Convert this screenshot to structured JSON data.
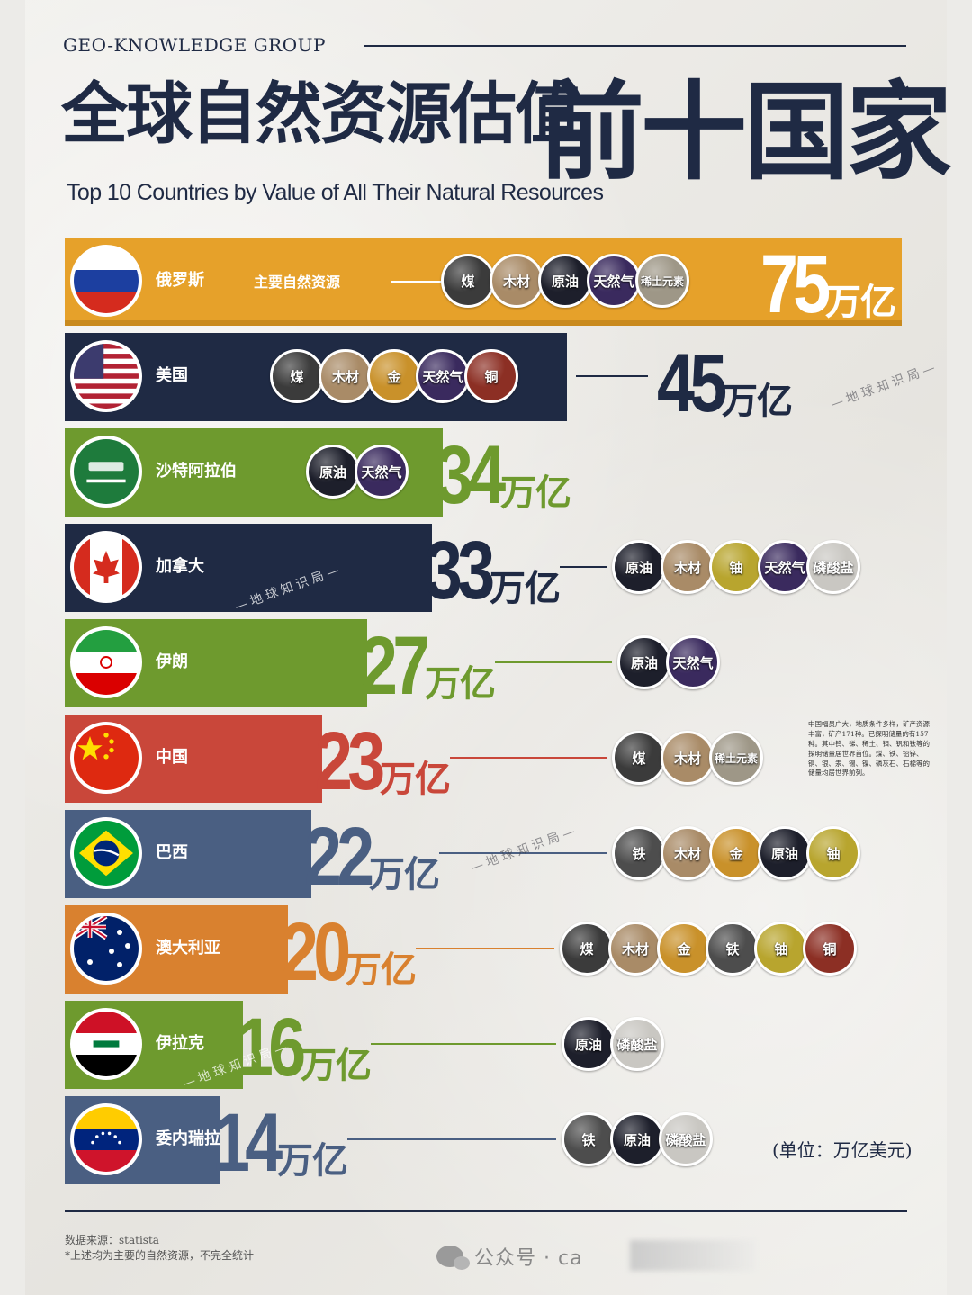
{
  "header": {
    "group": "GEO-KNOWLEDGE GROUP",
    "title_cn_part1": "全球自然资源估值",
    "title_cn_part2": "前十国家",
    "title_mark": "*",
    "title_en": "Top 10 Countries by Value of All Their Natural Resources"
  },
  "labels": {
    "main_resources": "主要自然资源",
    "unit_suffix": "万亿",
    "unit_label": "(单位：万亿美元)",
    "watermark": "—地球知识局—"
  },
  "colors": {
    "navy": "#1f2a44",
    "orange": "#e6a12a",
    "green": "#6e9a2e",
    "red": "#c9473a",
    "slate": "#4a5f82",
    "dark_orange": "#d9812f"
  },
  "resource_colors": {
    "煤": "#3b3b3b",
    "木材": "#a98b67",
    "原油": "#1d1f2b",
    "天然气": "#3a2a5e",
    "稀土元素": "#9e9787",
    "金": "#c9912a",
    "铜": "#8c2f24",
    "铀": "#b8a52e",
    "磷酸盐": "#c9c7c2",
    "铁": "#4d4d4d"
  },
  "china_note": "中国幅员广大，地质条件多样，矿产资源丰富，矿产171种。已探明储量的有157种。其中钨、锑、稀土、钼、钒和钛等的探明储量居世界首位。煤、铁、铅锌、铜、银、汞、锡、镍、磷灰石、石棉等的储量均居世界前列。",
  "footer": {
    "source": "数据来源：statista",
    "footnote": "*上述均为主要的自然资源，不完全统计",
    "wechat": "公众号 · ca"
  },
  "chart_data": {
    "type": "bar",
    "title": "全球自然资源估值前十国家",
    "subtitle": "Top 10 Countries by Value of All Their Natural Resources",
    "unit": "万亿美元",
    "categories": [
      "俄罗斯",
      "美国",
      "沙特阿拉伯",
      "加拿大",
      "伊朗",
      "中国",
      "巴西",
      "澳大利亚",
      "伊拉克",
      "委内瑞拉"
    ],
    "values": [
      75,
      45,
      34,
      33,
      27,
      23,
      22,
      20,
      16,
      14
    ],
    "value_labels": [
      "75",
      "45",
      "34",
      "33",
      "27",
      "23",
      "22",
      "20",
      "16",
      "14"
    ],
    "resources": [
      [
        "煤",
        "木材",
        "原油",
        "天然气",
        "稀土元素"
      ],
      [
        "煤",
        "木材",
        "金",
        "天然气",
        "铜"
      ],
      [
        "原油",
        "天然气"
      ],
      [
        "原油",
        "木材",
        "铀",
        "天然气",
        "磷酸盐"
      ],
      [
        "原油",
        "天然气"
      ],
      [
        "煤",
        "木材",
        "稀土元素"
      ],
      [
        "铁",
        "木材",
        "金",
        "原油",
        "铀"
      ],
      [
        "煤",
        "木材",
        "金",
        "铁",
        "铀",
        "铜"
      ],
      [
        "原油",
        "磷酸盐"
      ],
      [
        "铁",
        "原油",
        "磷酸盐"
      ]
    ],
    "bar_colors": [
      "#e6a12a",
      "#1f2a44",
      "#6e9a2e",
      "#1f2a44",
      "#6e9a2e",
      "#c9473a",
      "#4a5f82",
      "#d9812f",
      "#6e9a2e",
      "#4a5f82"
    ],
    "xlim": [
      0,
      75
    ]
  }
}
